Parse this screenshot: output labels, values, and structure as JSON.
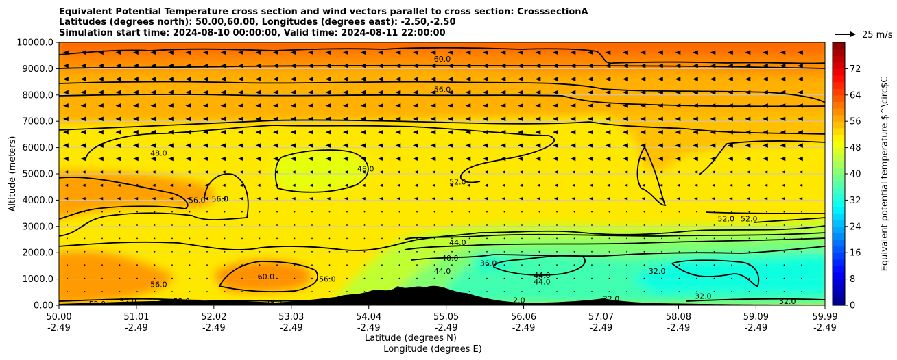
{
  "chart_data": {
    "type": "heatmap",
    "title_lines": [
      "Equivalent Potential Temperature cross section and wind vectors parallel to cross section: CrosssectionA",
      "Latitudes (degrees north): 50.00,60.00, Longitudes (degrees east): -2.50,-2.50",
      "Simulation start time: 2024-08-10 00:00:00, Valid time: 2024-08-11 22:00:00"
    ],
    "xlabel_lines": [
      "Latitude (degrees N)",
      "Longitude (degrees E)"
    ],
    "ylabel": "Altitude (meters)",
    "x_ticks": [
      {
        "lat": "50.00",
        "lon": "-2.49"
      },
      {
        "lat": "51.01",
        "lon": "-2.49"
      },
      {
        "lat": "52.02",
        "lon": "-2.49"
      },
      {
        "lat": "53.03",
        "lon": "-2.49"
      },
      {
        "lat": "54.04",
        "lon": "-2.49"
      },
      {
        "lat": "55.05",
        "lon": "-2.49"
      },
      {
        "lat": "56.06",
        "lon": "-2.49"
      },
      {
        "lat": "57.07",
        "lon": "-2.49"
      },
      {
        "lat": "58.08",
        "lon": "-2.49"
      },
      {
        "lat": "59.09",
        "lon": "-2.49"
      },
      {
        "lat": "59.99",
        "lon": "-2.49"
      }
    ],
    "xlim": [
      50.0,
      59.99
    ],
    "y_ticks": [
      "0.00",
      "1000.0",
      "2000.0",
      "3000.0",
      "4000.0",
      "5000.0",
      "6000.0",
      "7000.0",
      "8000.0",
      "9000.0",
      "10000.0"
    ],
    "ylim": [
      0,
      10000
    ],
    "grid": "horizontal",
    "colorbar": {
      "label": "Equivalent potential temperature $^\\circ$C",
      "ticks": [
        "0",
        "8",
        "16",
        "24",
        "32",
        "40",
        "48",
        "56",
        "64",
        "72"
      ],
      "range": [
        0,
        80
      ],
      "colormap": "jet"
    },
    "quiver_key": "25 m/s",
    "contour_labels": [
      {
        "text": "60.0",
        "lat": 55.0,
        "alt": 9380
      },
      {
        "text": "56.0",
        "lat": 55.0,
        "alt": 8220
      },
      {
        "text": "48.0",
        "lat": 51.3,
        "alt": 5800
      },
      {
        "text": "48.0",
        "lat": 54.0,
        "alt": 5200
      },
      {
        "text": "52.0",
        "lat": 55.2,
        "alt": 4700
      },
      {
        "text": "56.0",
        "lat": 51.8,
        "alt": 4000
      },
      {
        "text": "56.0",
        "lat": 52.1,
        "alt": 4050
      },
      {
        "text": "52.0",
        "lat": 58.7,
        "alt": 3300
      },
      {
        "text": "52.0",
        "lat": 59.0,
        "alt": 3300
      },
      {
        "text": "44.0",
        "lat": 55.2,
        "alt": 2400
      },
      {
        "text": "40.0",
        "lat": 55.1,
        "alt": 1800
      },
      {
        "text": "36.0",
        "lat": 55.6,
        "alt": 1600
      },
      {
        "text": "44.0",
        "lat": 55.0,
        "alt": 1300
      },
      {
        "text": "44.0",
        "lat": 56.3,
        "alt": 1150
      },
      {
        "text": "44.0",
        "lat": 56.3,
        "alt": 900
      },
      {
        "text": "32.0",
        "lat": 57.8,
        "alt": 1300
      },
      {
        "text": "32.0",
        "lat": 58.4,
        "alt": 350
      },
      {
        "text": "60.0",
        "lat": 52.7,
        "alt": 1100
      },
      {
        "text": "56.0",
        "lat": 53.5,
        "alt": 1000
      },
      {
        "text": "56.0",
        "lat": 51.3,
        "alt": 800
      },
      {
        "text": "52.0",
        "lat": 50.5,
        "alt": 50
      },
      {
        "text": "52.0",
        "lat": 50.9,
        "alt": 150
      },
      {
        "text": "52.0",
        "lat": 51.6,
        "alt": 150
      },
      {
        "text": "48.0",
        "lat": 52.8,
        "alt": 100
      },
      {
        "text": "32.0",
        "lat": 57.2,
        "alt": 250
      },
      {
        "text": "32.0",
        "lat": 59.5,
        "alt": 150
      },
      {
        "text": "2.0",
        "lat": 56.0,
        "alt": 200
      }
    ]
  },
  "colors": {
    "contour": "#000000",
    "terrain": "#000000",
    "grid": "#c8c8c8"
  }
}
